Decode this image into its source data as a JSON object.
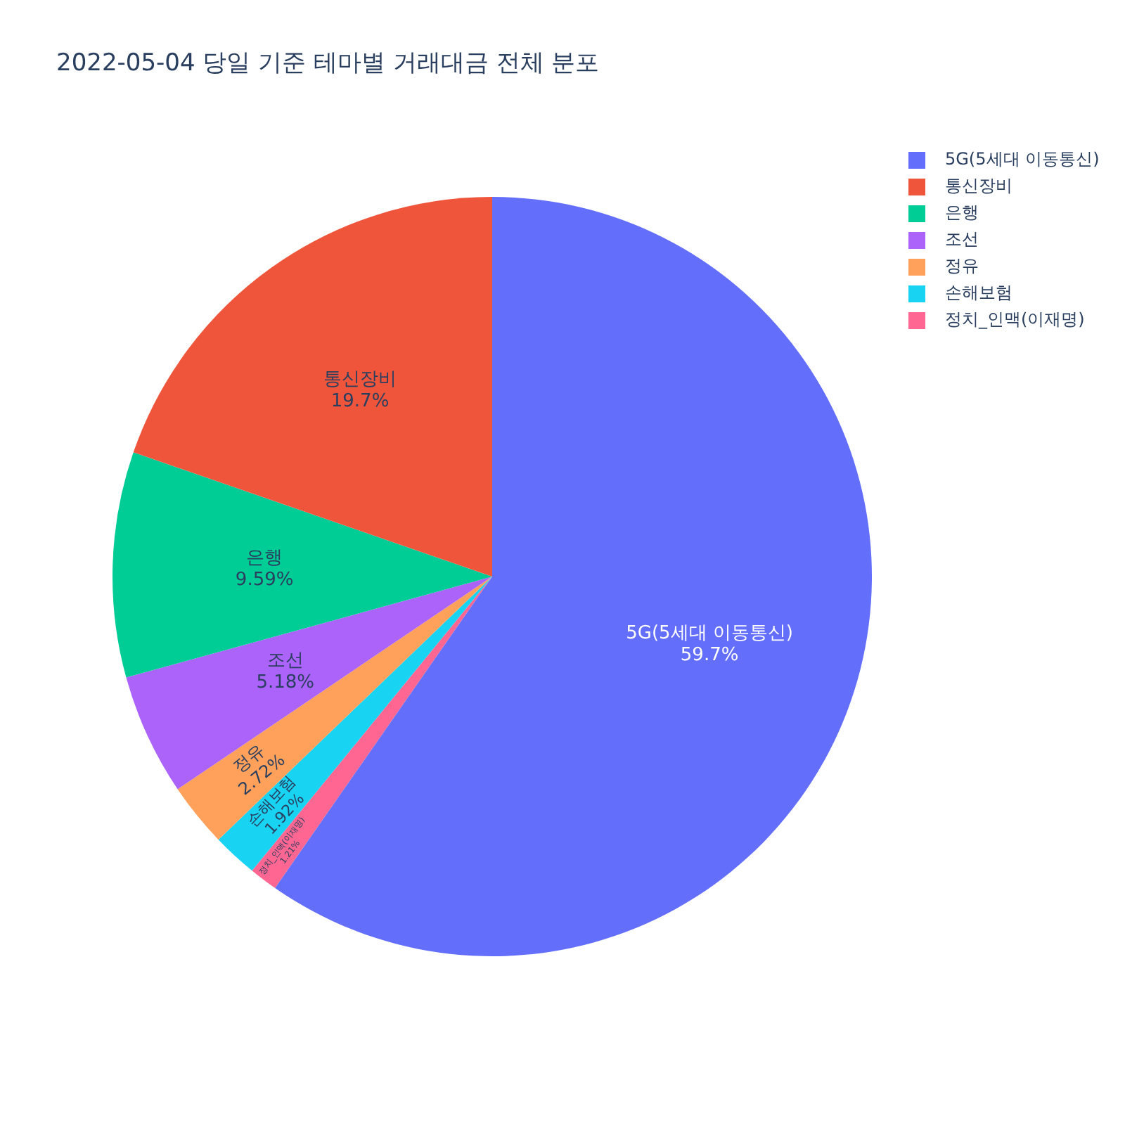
{
  "chart_data": {
    "type": "pie",
    "title": "2022-05-04 당일 기준 테마별 거래대금 전체 분포",
    "categories": [
      "5G(5세대 이동통신)",
      "통신장비",
      "은행",
      "조선",
      "정유",
      "손해보험",
      "정치_인맥(이재명)"
    ],
    "values": [
      59.7,
      19.7,
      9.59,
      5.18,
      2.72,
      1.92,
      1.21
    ],
    "colors": [
      "#636efa",
      "#ef553b",
      "#00cc96",
      "#ab63fa",
      "#ffa15a",
      "#19d3f3",
      "#ff6692"
    ],
    "value_labels": [
      "59.7%",
      "19.7%",
      "9.59%",
      "5.18%",
      "2.72%",
      "1.92%",
      "1.21%"
    ],
    "legend": "top right"
  }
}
